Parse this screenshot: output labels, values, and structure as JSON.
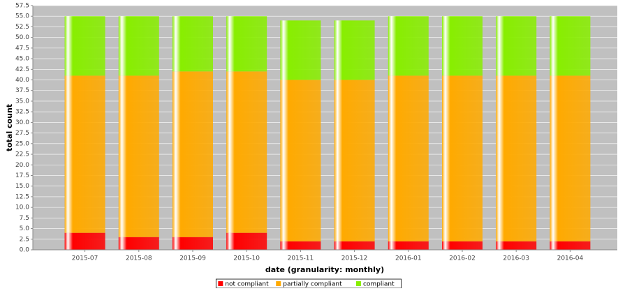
{
  "chart_data": {
    "type": "stacked_bar",
    "x_label": "date (granularity: monthly)",
    "y_label": "total count",
    "categories": [
      "2015-07",
      "2015-08",
      "2015-09",
      "2015-10",
      "2015-11",
      "2015-12",
      "2016-01",
      "2016-02",
      "2016-03",
      "2016-04"
    ],
    "series": [
      {
        "name": "not compliant",
        "color": "#ff0000",
        "values": [
          4,
          3,
          3,
          4,
          2,
          2,
          2,
          2,
          2,
          2
        ]
      },
      {
        "name": "partially compliant",
        "color": "#ffaa00",
        "values": [
          37,
          38,
          39,
          38,
          38,
          38,
          39,
          39,
          39,
          39
        ]
      },
      {
        "name": "compliant",
        "color": "#88ee00",
        "values": [
          14,
          14,
          13,
          13,
          14,
          14,
          14,
          14,
          14,
          14
        ]
      }
    ],
    "ylim": [
      0,
      57.5
    ],
    "yticks": [
      {
        "value": 0,
        "label": "0.0"
      },
      {
        "value": 2.5,
        "label": "2.5"
      },
      {
        "value": 5,
        "label": "5.0"
      },
      {
        "value": 7.5,
        "label": "7.5"
      },
      {
        "value": 10,
        "label": "10.0"
      },
      {
        "value": 12.5,
        "label": "12.5"
      },
      {
        "value": 15,
        "label": "15.0"
      },
      {
        "value": 17.5,
        "label": "17.5"
      },
      {
        "value": 20,
        "label": "20.0"
      },
      {
        "value": 22.5,
        "label": "22.5"
      },
      {
        "value": 25,
        "label": "25.0"
      },
      {
        "value": 27.5,
        "label": "27.5"
      },
      {
        "value": 30,
        "label": "30.0"
      },
      {
        "value": 32.5,
        "label": "32.5"
      },
      {
        "value": 35,
        "label": "35.0"
      },
      {
        "value": 37.5,
        "label": "37.5"
      },
      {
        "value": 40,
        "label": "40.0"
      },
      {
        "value": 42.5,
        "label": "42.5"
      },
      {
        "value": 45,
        "label": "45.0"
      },
      {
        "value": 47.5,
        "label": "47.5"
      },
      {
        "value": 50,
        "label": "50.0"
      },
      {
        "value": 52.5,
        "label": "52.5"
      },
      {
        "value": 55,
        "label": "55.0"
      },
      {
        "value": 57.5,
        "label": "57.5"
      }
    ],
    "grid": true,
    "legend": "bottom"
  }
}
